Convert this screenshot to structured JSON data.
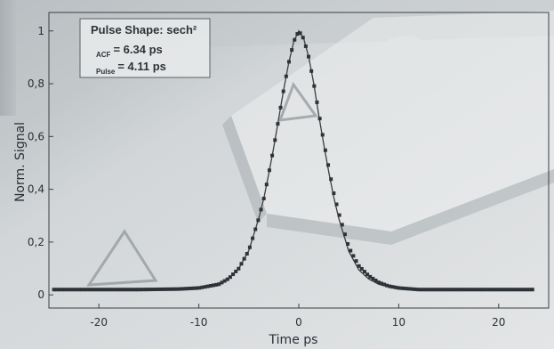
{
  "chart_data": {
    "type": "line",
    "title": "",
    "xlabel": "Time  ps",
    "ylabel": "Norm. Signal",
    "xlim": [
      -25,
      25
    ],
    "ylim": [
      -0.05,
      1.07
    ],
    "x_ticks": [
      -20,
      -10,
      0,
      10,
      20
    ],
    "x_tick_labels": [
      "-20",
      "-10",
      "0",
      "10",
      "20"
    ],
    "y_ticks": [
      0,
      0.2,
      0.4,
      0.6,
      0.8,
      1
    ],
    "y_tick_labels": [
      "0",
      "0,2",
      "0,4",
      "0,6",
      "0,8",
      "1"
    ],
    "grid": false,
    "legend": {
      "placement": "top-left",
      "line1": "Pulse Shape: sech²",
      "line2_sub": "ACF",
      "line2_value": "= 6.34 ps",
      "line3_sub": "Pulse",
      "line3_value": "= 4.11 ps"
    },
    "series": [
      {
        "style": "squares",
        "color": "#2e3338",
        "x": [
          -24.5,
          -20,
          -16,
          -12,
          -10,
          -8,
          -7,
          -6,
          -5,
          -4,
          -3.5,
          -3,
          -2.5,
          -2,
          -1.5,
          -1,
          -0.5,
          0,
          0.5,
          1,
          1.5,
          2,
          2.5,
          3,
          3.5,
          4,
          5,
          6,
          7,
          8,
          9,
          10,
          12,
          16,
          20,
          23.5
        ],
        "y": [
          0.02,
          0.02,
          0.02,
          0.022,
          0.026,
          0.04,
          0.062,
          0.1,
          0.168,
          0.29,
          0.365,
          0.46,
          0.56,
          0.67,
          0.78,
          0.88,
          0.96,
          1.0,
          0.97,
          0.9,
          0.8,
          0.69,
          0.58,
          0.48,
          0.385,
          0.31,
          0.18,
          0.11,
          0.072,
          0.047,
          0.033,
          0.026,
          0.02,
          0.02,
          0.02,
          0.02
        ]
      },
      {
        "style": "line",
        "color": "#3a3f44",
        "x": [
          -24.5,
          -20,
          -16,
          -12,
          -10,
          -8,
          -7,
          -6,
          -5,
          -4,
          -3.5,
          -3,
          -2.5,
          -2,
          -1.5,
          -1,
          -0.5,
          0,
          0.5,
          1,
          1.5,
          2,
          2.5,
          3,
          3.5,
          4,
          5,
          6,
          7,
          8,
          9,
          10,
          12,
          16,
          20,
          23.5
        ],
        "y": [
          0.02,
          0.02,
          0.02,
          0.022,
          0.026,
          0.04,
          0.062,
          0.1,
          0.168,
          0.29,
          0.365,
          0.46,
          0.56,
          0.67,
          0.78,
          0.88,
          0.96,
          1.0,
          0.97,
          0.9,
          0.8,
          0.68,
          0.57,
          0.465,
          0.37,
          0.29,
          0.165,
          0.095,
          0.06,
          0.04,
          0.03,
          0.024,
          0.02,
          0.02,
          0.02,
          0.02
        ]
      }
    ]
  }
}
